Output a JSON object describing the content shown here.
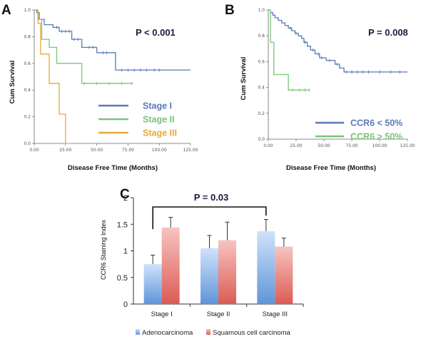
{
  "chart_data": [
    {
      "panel": "A",
      "type": "line",
      "xlabel": "Disease Free Time (Months)",
      "ylabel": "Cum Survival",
      "annotation": "P < 0.001",
      "xlim": [
        0,
        125
      ],
      "ylim": [
        0,
        1.0
      ],
      "x_ticks": [
        "0.00",
        "25.00",
        "50.00",
        "75.00",
        "100.00",
        "125.00"
      ],
      "y_ticks": [
        "0.0",
        "0.2",
        "0.4",
        "0.6",
        "0.8",
        "1.0"
      ],
      "legend_position": "bottom-right",
      "series": [
        {
          "name": "Stage I",
          "color": "#5b79b8",
          "steps": [
            [
              0,
              1.0
            ],
            [
              2,
              0.98
            ],
            [
              4,
              0.93
            ],
            [
              8,
              0.89
            ],
            [
              15,
              0.87
            ],
            [
              20,
              0.84
            ],
            [
              30,
              0.78
            ],
            [
              38,
              0.72
            ],
            [
              50,
              0.68
            ],
            [
              65,
              0.55
            ],
            [
              125,
              0.55
            ]
          ],
          "censor_x": [
            18,
            22,
            25,
            28,
            32,
            35,
            44,
            47,
            55,
            58,
            70,
            75,
            80,
            85,
            90,
            96,
            100
          ]
        },
        {
          "name": "Stage II",
          "color": "#7ac47a",
          "steps": [
            [
              0,
              1.0
            ],
            [
              3,
              0.93
            ],
            [
              6,
              0.78
            ],
            [
              12,
              0.72
            ],
            [
              18,
              0.6
            ],
            [
              28,
              0.6
            ],
            [
              38,
              0.45
            ],
            [
              79,
              0.45
            ]
          ],
          "censor_x": [
            40,
            50,
            60,
            70,
            78
          ]
        },
        {
          "name": "Stage III",
          "color": "#e8a93a",
          "steps": [
            [
              0,
              1.0
            ],
            [
              3,
              0.9
            ],
            [
              5,
              0.67
            ],
            [
              12,
              0.45
            ],
            [
              20,
              0.22
            ],
            [
              25,
              0.0
            ],
            [
              30,
              0.0
            ]
          ],
          "censor_x": []
        }
      ]
    },
    {
      "panel": "B",
      "type": "line",
      "xlabel": "Disease Free Time (Months)",
      "ylabel": "Cum Survival",
      "annotation": "P = 0.008",
      "xlim": [
        0,
        125
      ],
      "ylim": [
        0,
        1.0
      ],
      "x_ticks": [
        "0.00",
        "25.00",
        "50.00",
        "75.00",
        "100.00",
        "125.00"
      ],
      "y_ticks": [
        "0.0",
        "0.2",
        "0.4",
        "0.6",
        "0.8",
        "1.0"
      ],
      "legend_position": "bottom-right",
      "series": [
        {
          "name": "CCR6 < 50%",
          "color": "#5b79b8",
          "steps": [
            [
              0,
              1.0
            ],
            [
              2,
              0.98
            ],
            [
              4,
              0.96
            ],
            [
              6,
              0.94
            ],
            [
              9,
              0.92
            ],
            [
              12,
              0.9
            ],
            [
              15,
              0.88
            ],
            [
              18,
              0.86
            ],
            [
              21,
              0.84
            ],
            [
              24,
              0.82
            ],
            [
              27,
              0.8
            ],
            [
              30,
              0.78
            ],
            [
              32,
              0.75
            ],
            [
              35,
              0.72
            ],
            [
              38,
              0.69
            ],
            [
              42,
              0.66
            ],
            [
              46,
              0.63
            ],
            [
              52,
              0.61
            ],
            [
              60,
              0.58
            ],
            [
              64,
              0.55
            ],
            [
              68,
              0.52
            ],
            [
              125,
              0.52
            ]
          ],
          "censor_x": [
            20,
            25,
            33,
            40,
            45,
            48,
            55,
            62,
            70,
            75,
            80,
            85,
            90,
            100,
            110,
            118
          ]
        },
        {
          "name": "CCR6 > 50%",
          "color": "#7ac47a",
          "steps": [
            [
              0,
              1.0
            ],
            [
              2,
              0.75
            ],
            [
              5,
              0.5
            ],
            [
              18,
              0.38
            ],
            [
              37,
              0.38
            ]
          ],
          "censor_x": [
            22,
            28,
            33,
            37
          ]
        }
      ]
    },
    {
      "panel": "C",
      "type": "bar",
      "title": "P = 0.03",
      "ylabel": "CCR6 Staining Index",
      "ylim": [
        0,
        2
      ],
      "y_ticks": [
        "0",
        "0.5",
        "1",
        "1.5",
        "2"
      ],
      "categories": [
        "Stage I",
        "Stage II",
        "Stage III"
      ],
      "legend_position": "bottom",
      "series": [
        {
          "name": "Adenocarcinoma",
          "color": "#8fb8ea",
          "values": [
            0.75,
            1.05,
            1.37
          ],
          "errors": [
            0.17,
            0.24,
            0.22
          ]
        },
        {
          "name": "Squamous cell carcinoma",
          "color": "#e88080",
          "values": [
            1.44,
            1.2,
            1.08
          ],
          "errors": [
            0.19,
            0.34,
            0.16
          ]
        }
      ]
    }
  ]
}
